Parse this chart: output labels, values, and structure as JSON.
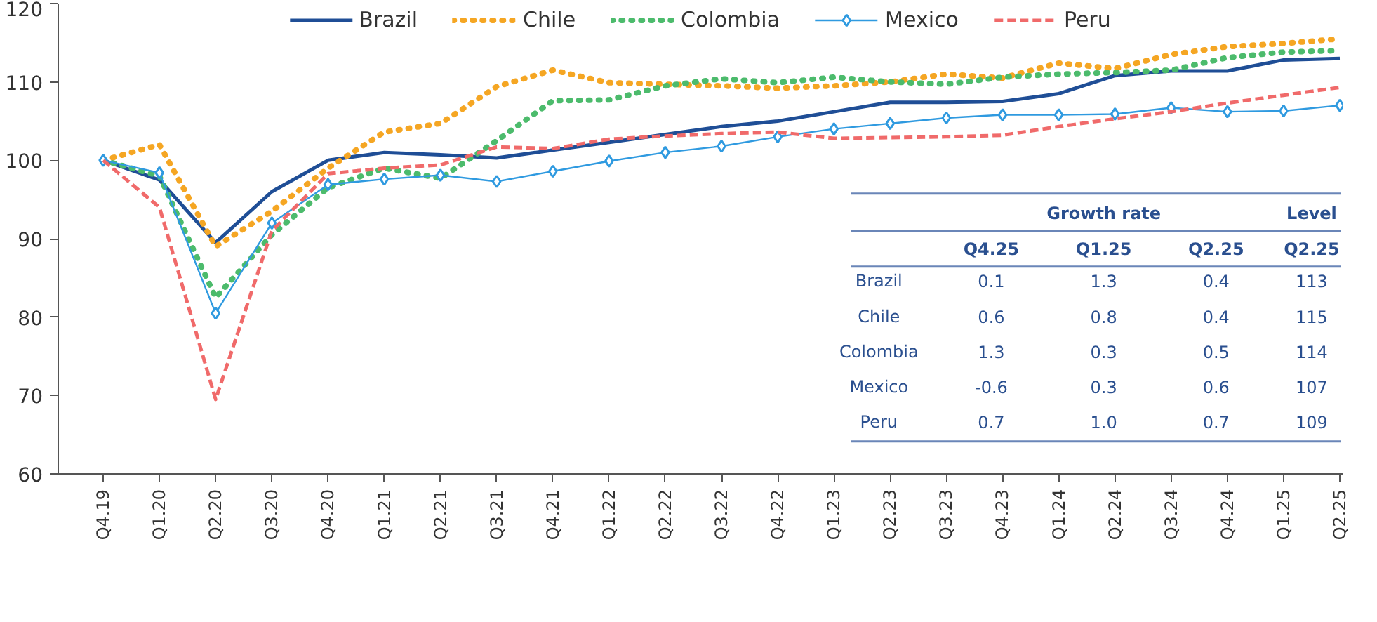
{
  "chart_data": {
    "type": "line",
    "categories": [
      "Q4.19",
      "Q1.20",
      "Q2.20",
      "Q3.20",
      "Q4.20",
      "Q1.21",
      "Q2.21",
      "Q3.21",
      "Q4.21",
      "Q1.22",
      "Q2.22",
      "Q3.22",
      "Q4.22",
      "Q1.23",
      "Q2.23",
      "Q3.23",
      "Q4.23",
      "Q1.24",
      "Q2.24",
      "Q3.24",
      "Q4.24",
      "Q1.25",
      "Q2.25"
    ],
    "series": [
      {
        "name": "Brazil",
        "color": "#1f4e96",
        "line_style": "solid",
        "values": [
          100,
          97.5,
          89.5,
          96,
          100,
          101,
          100.7,
          100.3,
          101.3,
          102.3,
          103.3,
          104.3,
          105,
          106.2,
          107.4,
          107.4,
          107.5,
          108.5,
          110.8,
          111.4,
          111.4,
          112.8,
          113
        ]
      },
      {
        "name": "Chile",
        "color": "#f5a623",
        "line_style": "dotted",
        "values": [
          100,
          102,
          89,
          93.5,
          99,
          103.6,
          104.7,
          109.4,
          111.5,
          109.9,
          109.7,
          109.5,
          109.2,
          109.5,
          110,
          111,
          110.5,
          112.4,
          111.7,
          113.5,
          114.5,
          114.9,
          115.5
        ]
      },
      {
        "name": "Colombia",
        "color": "#4cbb6c",
        "line_style": "dotted",
        "values": [
          100,
          98,
          82.5,
          90.5,
          96.5,
          99,
          97.7,
          102.5,
          107.6,
          107.7,
          109.5,
          110.4,
          109.9,
          110.6,
          110,
          109.7,
          110.6,
          111,
          111.2,
          111.5,
          113.1,
          113.8,
          114
        ]
      },
      {
        "name": "Mexico",
        "color": "#2f9ae0",
        "marker": "diamond",
        "values": [
          100,
          98.4,
          80.5,
          92,
          96.9,
          97.6,
          98.1,
          97.3,
          98.6,
          99.9,
          101,
          101.8,
          103,
          104,
          104.7,
          105.4,
          105.8,
          105.8,
          105.9,
          106.7,
          106.2,
          106.3,
          107
        ]
      },
      {
        "name": "Peru",
        "color": "#f06a6a",
        "line_style": "dashed",
        "values": [
          100,
          94,
          69.5,
          91,
          98.3,
          99,
          99.4,
          101.7,
          101.5,
          102.7,
          103.1,
          103.4,
          103.6,
          102.8,
          102.9,
          103,
          103.2,
          104.3,
          105.3,
          106.2,
          107.3,
          108.3,
          109.3
        ]
      }
    ],
    "ylim": [
      60,
      120
    ],
    "yticks": [
      60,
      70,
      80,
      90,
      100,
      110,
      120
    ],
    "grid": false,
    "legend": "top",
    "annotations": [
      "Growth rate",
      "Level",
      "Q4.25",
      "Q1.25",
      "Q2.25",
      "Q2.25",
      "Brazil",
      "0.1",
      "1.3",
      "0.4",
      "113",
      "Chile",
      "0.6",
      "0.8",
      "0.4",
      "115",
      "Colombia",
      "1.3",
      "0.3",
      "0.5",
      "114",
      "Mexico",
      "-0.6",
      "0.3",
      "0.6",
      "107",
      "Peru",
      "0.7",
      "1.0",
      "0.7",
      "109"
    ]
  }
}
